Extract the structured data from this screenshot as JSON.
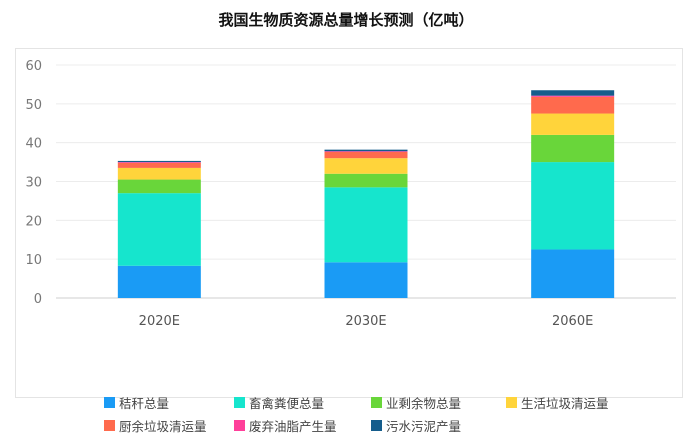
{
  "chart_data": {
    "type": "bar",
    "stacked": true,
    "title": "我国生物质资源总量增长预测（亿吨）",
    "categories": [
      "2020E",
      "2030E",
      "2060E"
    ],
    "ylim": [
      0,
      60
    ],
    "yticks": [
      0,
      10,
      20,
      30,
      40,
      50,
      60
    ],
    "grid": true,
    "legend_position": "bottom",
    "series": [
      {
        "name": "秸秆总量",
        "color": "#1a9bf5",
        "values": [
          8.3,
          9.2,
          12.5
        ]
      },
      {
        "name": "畜禽粪便总量",
        "color": "#16e5cd",
        "values": [
          18.7,
          19.3,
          22.5
        ]
      },
      {
        "name": "业剩余物总量",
        "color": "#69d63a",
        "values": [
          3.5,
          3.5,
          7.0
        ]
      },
      {
        "name": "生活垃圾清运量",
        "color": "#ffd43b",
        "values": [
          3.0,
          4.0,
          5.5
        ]
      },
      {
        "name": "厨余垃圾清运量",
        "color": "#ff6a4d",
        "values": [
          1.3,
          1.6,
          4.3
        ]
      },
      {
        "name": "废弃油脂产生量",
        "color": "#ff3f9a",
        "values": [
          0.2,
          0.2,
          0.3
        ]
      },
      {
        "name": "污水污泥产量",
        "color": "#155d8c",
        "values": [
          0.3,
          0.4,
          1.4
        ]
      }
    ]
  }
}
